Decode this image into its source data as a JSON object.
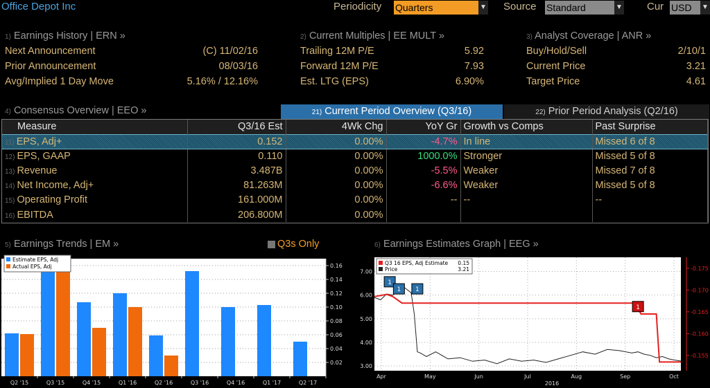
{
  "header": {
    "company": "Office Depot Inc",
    "periodicity_label": "Periodicity",
    "periodicity_value": "Quarters",
    "source_label": "Source",
    "source_value": "Standard",
    "cur_label": "Cur",
    "cur_value": "USD"
  },
  "earnings_history": {
    "num": "1)",
    "title": "Earnings History | ERN »",
    "rows": [
      {
        "label": "Next Announcement",
        "value": "(C)  11/02/16"
      },
      {
        "label": "Prior Announcement",
        "value": "08/03/16"
      },
      {
        "label": "Avg/Implied 1 Day Move",
        "value": "5.16% / 12.16%"
      }
    ]
  },
  "current_multiples": {
    "num": "2)",
    "title": "Current Multiples | EE MULT »",
    "rows": [
      {
        "label": "Trailing 12M P/E",
        "value": "5.92"
      },
      {
        "label": "Forward 12M P/E",
        "value": "7.93"
      },
      {
        "label": "Est. LTG (EPS)",
        "value": "6.90%"
      }
    ]
  },
  "analyst_coverage": {
    "num": "3)",
    "title": "Analyst Coverage | ANR »",
    "rows": [
      {
        "label": "Buy/Hold/Sell",
        "value": "2/10/1"
      },
      {
        "label": "Current Price",
        "value": "3.21"
      },
      {
        "label": "Target Price",
        "value": "4.61"
      }
    ]
  },
  "consensus": {
    "num": "4)",
    "title": "Consensus Overview | EEO »",
    "tab_current_num": "21)",
    "tab_current": "Current Period Overview (Q3/16)",
    "tab_prior_num": "22)",
    "tab_prior": "Prior Period Analysis (Q2/16)",
    "columns": [
      "Measure",
      "Q3/16 Est",
      "4Wk Chg",
      "YoY Gr",
      "Growth vs Comps",
      "Past Surprise"
    ],
    "rows": [
      {
        "n": "11)",
        "measure": "EPS, Adj+",
        "est": "0.152",
        "chg": "0.00%",
        "yoy": "-4.7%",
        "yoy_class": "neg",
        "comps": "In line",
        "surprise": "Missed 6 of 8"
      },
      {
        "n": "12)",
        "measure": "EPS, GAAP",
        "est": "0.110",
        "chg": "0.00%",
        "yoy": "1000.0%",
        "yoy_class": "pos",
        "comps": "Stronger",
        "surprise": "Missed 5 of 8"
      },
      {
        "n": "13)",
        "measure": "Revenue",
        "est": "3.487B",
        "chg": "0.00%",
        "yoy": "-5.5%",
        "yoy_class": "neg",
        "comps": "Weaker",
        "surprise": "Missed 7 of 8"
      },
      {
        "n": "14)",
        "measure": "Net Income, Adj+",
        "est": "81.263M",
        "chg": "0.00%",
        "yoy": "-6.6%",
        "yoy_class": "neg",
        "comps": "Weaker",
        "surprise": "Missed 5 of 8"
      },
      {
        "n": "15)",
        "measure": "Operating Profit",
        "est": "161.000M",
        "chg": "0.00%",
        "yoy": "--",
        "yoy_class": "",
        "comps": "--",
        "surprise": "--"
      },
      {
        "n": "16)",
        "measure": "EBITDA",
        "est": "206.800M",
        "chg": "0.00%",
        "yoy": "",
        "yoy_class": "",
        "comps": "",
        "surprise": ""
      }
    ]
  },
  "earnings_trends": {
    "num": "5)",
    "title": "Earnings Trends | EM »",
    "q3s_label": "Q3s Only"
  },
  "estimates_graph": {
    "num": "6)",
    "title": "Earnings Estimates Graph | EEG »"
  },
  "colors": {
    "estimate": "#1e88ff",
    "actual": "#f06a0c",
    "est_line": "#e5201f",
    "price_line": "#222222"
  },
  "chart_data": [
    {
      "type": "bar",
      "categories": [
        "Q2 '15",
        "Q3 '15",
        "Q4 '15",
        "Q1 '16",
        "Q2 '16",
        "Q3 '16",
        "Q4 '16",
        "Q1 '17",
        "Q2 '17"
      ],
      "series": [
        {
          "name": "Estimate EPS, Adj",
          "values": [
            0.062,
            0.17,
            0.107,
            0.12,
            0.059,
            0.152,
            0.1,
            0.103,
            0.05
          ]
        },
        {
          "name": "Actual EPS, Adj",
          "values": [
            0.061,
            0.16,
            0.07,
            0.1,
            0.03,
            null,
            null,
            null,
            null
          ]
        }
      ],
      "yticks": [
        "0.02",
        "0.04",
        "0.06",
        "0.08",
        "0.10",
        "0.12",
        "0.14",
        "0.16"
      ],
      "ylim": [
        0,
        0.17
      ],
      "legend": "top-left",
      "grid": true
    },
    {
      "type": "line",
      "xticks": [
        "Apr",
        "May",
        "Jun",
        "Jul",
        "Aug",
        "Sep",
        "Oct"
      ],
      "xlabel_year": "2016",
      "left_yticks": [
        "3.00",
        "4.00",
        "5.00",
        "6.00",
        "7.00"
      ],
      "right_yticks": [
        "0.155",
        "0.160",
        "0.165",
        "0.170",
        "0.175"
      ],
      "left_ylim": [
        2.8,
        7.6
      ],
      "right_ylim": [
        0.1515,
        0.1775
      ],
      "legend": [
        {
          "name": "Q3 16 EPS, Adj Estimate",
          "value": "0.15"
        },
        {
          "name": "Price",
          "value": "3.21"
        }
      ],
      "series": [
        {
          "name": "Q3 16 EPS, Adj Estimate",
          "axis": "right",
          "x": [
            0,
            4,
            6,
            9,
            11,
            14,
            85,
            87,
            92,
            93,
            100
          ],
          "y": [
            0.1685,
            0.169,
            0.1685,
            0.167,
            0.167,
            0.167,
            0.167,
            0.1645,
            0.1645,
            0.1535,
            0.1535
          ]
        },
        {
          "name": "Price",
          "axis": "left",
          "x": [
            0,
            2,
            4,
            6,
            8,
            10,
            12,
            13,
            14,
            15,
            17,
            20,
            24,
            28,
            32,
            36,
            40,
            44,
            48,
            52,
            56,
            60,
            64,
            68,
            72,
            76,
            80,
            84,
            86,
            88,
            90,
            92,
            94,
            96,
            98,
            100
          ],
          "y": [
            5.9,
            5.8,
            6.05,
            6.0,
            6.2,
            6.3,
            6.1,
            5.2,
            3.6,
            3.55,
            3.4,
            3.6,
            3.3,
            3.35,
            3.2,
            3.25,
            3.1,
            3.3,
            3.2,
            3.25,
            3.15,
            3.3,
            3.45,
            3.6,
            3.5,
            3.7,
            3.65,
            3.55,
            3.6,
            3.5,
            3.45,
            3.35,
            3.4,
            3.3,
            3.25,
            3.21
          ]
        }
      ],
      "markers": [
        {
          "label": "1",
          "at": 5,
          "level": 6.55,
          "color": "#2a6fa8"
        },
        {
          "label": "1",
          "at": 8,
          "level": 6.25,
          "color": "#2a6fa8"
        },
        {
          "label": "1",
          "at": 14,
          "level": 6.25,
          "color": "#2a6fa8"
        },
        {
          "label": "1",
          "at": 86,
          "level": 5.5,
          "color": "#cc1111"
        }
      ]
    }
  ]
}
